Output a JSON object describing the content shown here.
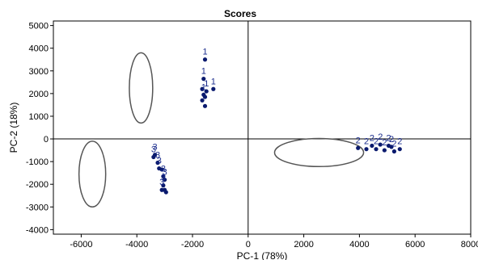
{
  "chart_data": {
    "type": "scatter",
    "title": "Scores",
    "xlabel": "PC-1 (78%)",
    "ylabel": "PC-2 (18%)",
    "xlim": [
      -7000,
      8000
    ],
    "ylim": [
      -4200,
      5200
    ],
    "xticks": [
      -6000,
      -4000,
      -2000,
      0,
      2000,
      4000,
      6000,
      8000
    ],
    "yticks": [
      -4000,
      -3000,
      -2000,
      -1000,
      0,
      1000,
      2000,
      3000,
      4000,
      5000
    ],
    "grid": false,
    "zero_lines": true,
    "colors": {
      "points": "#0a1a6e",
      "labels": "#1a2c8c",
      "ellipses": "#555555"
    },
    "points": [
      {
        "x": -1550,
        "y": 3500,
        "label": "1"
      },
      {
        "x": -1600,
        "y": 2650,
        "label": "1"
      },
      {
        "x": -1250,
        "y": 2200,
        "label": "1"
      },
      {
        "x": -1650,
        "y": 2200,
        "label": ""
      },
      {
        "x": -1500,
        "y": 2100,
        "label": "1"
      },
      {
        "x": -1600,
        "y": 1950,
        "label": "1"
      },
      {
        "x": -1550,
        "y": 1850,
        "label": ""
      },
      {
        "x": -1650,
        "y": 1700,
        "label": ""
      },
      {
        "x": -1550,
        "y": 1450,
        "label": ""
      },
      {
        "x": 3950,
        "y": -400,
        "label": "2"
      },
      {
        "x": 4250,
        "y": -450,
        "label": "2"
      },
      {
        "x": 4450,
        "y": -300,
        "label": "2"
      },
      {
        "x": 4600,
        "y": -450,
        "label": "2"
      },
      {
        "x": 4750,
        "y": -250,
        "label": "2"
      },
      {
        "x": 4900,
        "y": -500,
        "label": "2"
      },
      {
        "x": 5050,
        "y": -300,
        "label": "2"
      },
      {
        "x": 5150,
        "y": -350,
        "label": "2"
      },
      {
        "x": 5250,
        "y": -550,
        "label": "2"
      },
      {
        "x": 5450,
        "y": -450,
        "label": "2"
      },
      {
        "x": -3350,
        "y": -700,
        "label": "3"
      },
      {
        "x": -3400,
        "y": -800,
        "label": "3"
      },
      {
        "x": -3250,
        "y": -1050,
        "label": "3"
      },
      {
        "x": -3200,
        "y": -1300,
        "label": "3"
      },
      {
        "x": -3100,
        "y": -1350,
        "label": ""
      },
      {
        "x": -3050,
        "y": -1650,
        "label": "3"
      },
      {
        "x": -3000,
        "y": -1800,
        "label": "3"
      },
      {
        "x": -3050,
        "y": -2050,
        "label": "3"
      },
      {
        "x": -3100,
        "y": -2250,
        "label": "3"
      },
      {
        "x": -2950,
        "y": -2350,
        "label": ""
      },
      {
        "x": -3000,
        "y": -2250,
        "label": ""
      }
    ],
    "ellipses": [
      {
        "cx": -3850,
        "cy": 2250,
        "rx": 420,
        "ry": 1550
      },
      {
        "cx": 2550,
        "cy": -600,
        "rx": 1600,
        "ry": 620
      },
      {
        "cx": -5600,
        "cy": -1550,
        "rx": 480,
        "ry": 1450
      }
    ]
  }
}
